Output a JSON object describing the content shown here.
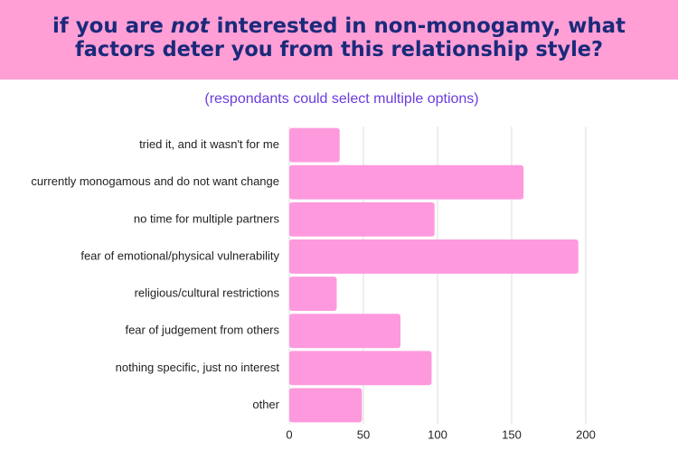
{
  "chart_data": {
    "type": "bar",
    "orientation": "horizontal",
    "title_lines": [
      [
        "if you are ",
        "not",
        " interested in non-monogamy, what"
      ],
      [
        "factors deter you from this relationship style?"
      ]
    ],
    "subtitle": "(respondants could select multiple options)",
    "categories": [
      "tried it, and it wasn't for me",
      "currently monogamous and do not want change",
      "no time for multiple partners",
      "fear of emotional/physical vulnerability",
      "religious/cultural restrictions",
      "fear of judgement from others",
      "nothing specific, just no interest",
      "other"
    ],
    "values": [
      34,
      158,
      98,
      195,
      32,
      75,
      96,
      49
    ],
    "color": "#ff99dd",
    "xlim": [
      0,
      200
    ],
    "xticks": [
      0,
      50,
      100,
      150,
      200
    ],
    "grid": true
  }
}
